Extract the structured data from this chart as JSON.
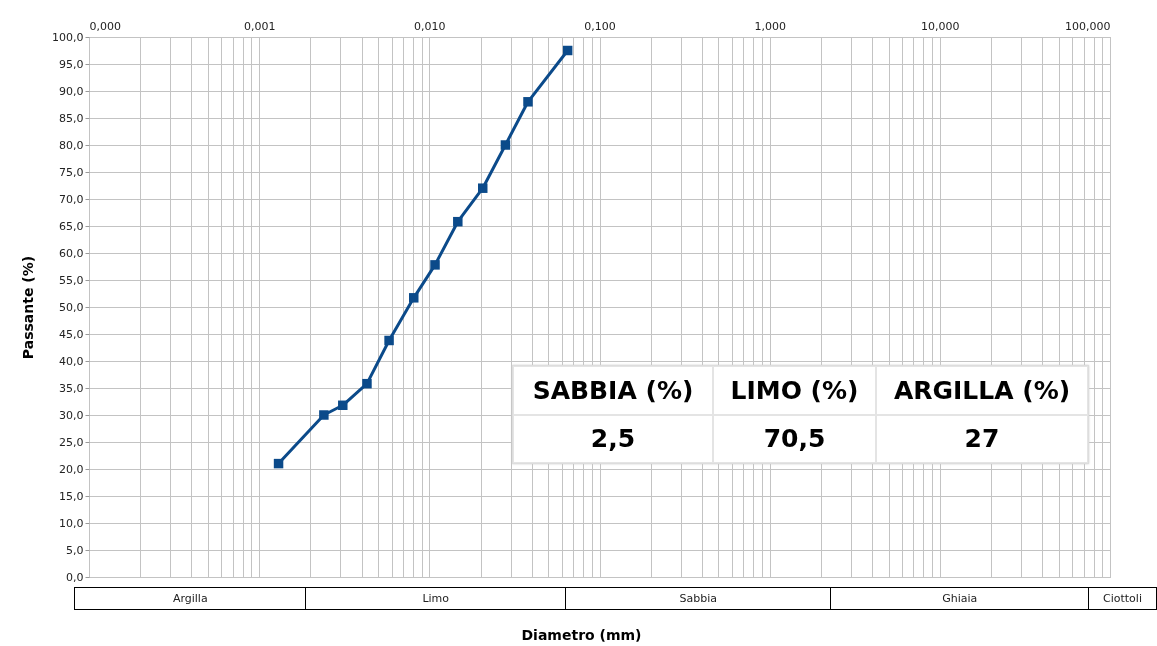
{
  "chart_data": {
    "type": "line",
    "xlabel": "Diametro  (mm)",
    "ylabel": "Passante (%)",
    "x": [
      0.0013,
      0.0024,
      0.0031,
      0.0043,
      0.0058,
      0.0081,
      0.0108,
      0.0147,
      0.0206,
      0.028,
      0.038,
      0.065
    ],
    "series": [
      {
        "color": "#0b4a8a",
        "values": [
          21,
          30,
          31.8,
          35.8,
          43.8,
          51.7,
          57.8,
          65.8,
          72,
          80,
          88,
          97.5
        ]
      }
    ],
    "xlim": [
      0.0001,
      100
    ],
    "xticks": [
      {
        "value": 0.0001,
        "label": "0,000"
      },
      {
        "value": 0.0002,
        "label": null
      },
      {
        "value": 0.0003,
        "label": null
      },
      {
        "value": 0.0004,
        "label": null
      },
      {
        "value": 0.0005,
        "label": null
      },
      {
        "value": 0.0006,
        "label": null
      },
      {
        "value": 0.0007,
        "label": null
      },
      {
        "value": 0.0008,
        "label": null
      },
      {
        "value": 0.0009,
        "label": null
      },
      {
        "value": 0.001,
        "label": "0,001"
      },
      {
        "value": 0.002,
        "label": null
      },
      {
        "value": 0.003,
        "label": null
      },
      {
        "value": 0.004,
        "label": null
      },
      {
        "value": 0.005,
        "label": null
      },
      {
        "value": 0.006,
        "label": null
      },
      {
        "value": 0.007,
        "label": null
      },
      {
        "value": 0.008,
        "label": null
      },
      {
        "value": 0.009,
        "label": null
      },
      {
        "value": 0.01,
        "label": "0,010"
      },
      {
        "value": 0.02,
        "label": null
      },
      {
        "value": 0.03,
        "label": null
      },
      {
        "value": 0.04,
        "label": null
      },
      {
        "value": 0.05,
        "label": null
      },
      {
        "value": 0.06,
        "label": null
      },
      {
        "value": 0.07,
        "label": null
      },
      {
        "value": 0.08,
        "label": null
      },
      {
        "value": 0.09,
        "label": null
      },
      {
        "value": 0.1,
        "label": "0,100"
      },
      {
        "value": 0.2,
        "label": null
      },
      {
        "value": 0.3,
        "label": null
      },
      {
        "value": 0.4,
        "label": null
      },
      {
        "value": 0.5,
        "label": null
      },
      {
        "value": 0.6,
        "label": null
      },
      {
        "value": 0.7,
        "label": null
      },
      {
        "value": 0.8,
        "label": null
      },
      {
        "value": 0.9,
        "label": null
      },
      {
        "value": 1,
        "label": "1,000"
      },
      {
        "value": 2,
        "label": null
      },
      {
        "value": 3,
        "label": null
      },
      {
        "value": 4,
        "label": null
      },
      {
        "value": 5,
        "label": null
      },
      {
        "value": 6,
        "label": null
      },
      {
        "value": 7,
        "label": null
      },
      {
        "value": 8,
        "label": null
      },
      {
        "value": 9,
        "label": null
      },
      {
        "value": 10,
        "label": "10,000"
      },
      {
        "value": 20,
        "label": null
      },
      {
        "value": 30,
        "label": null
      },
      {
        "value": 40,
        "label": null
      },
      {
        "value": 50,
        "label": null
      },
      {
        "value": 60,
        "label": null
      },
      {
        "value": 70,
        "label": null
      },
      {
        "value": 80,
        "label": null
      },
      {
        "value": 90,
        "label": null
      },
      {
        "value": 100,
        "label": "100,000"
      }
    ],
    "ylim": [
      0,
      100
    ],
    "yticks": [
      {
        "value": 0,
        "label": "0,0"
      },
      {
        "value": 5,
        "label": "5,0"
      },
      {
        "value": 10,
        "label": "10,0"
      },
      {
        "value": 15,
        "label": "15,0"
      },
      {
        "value": 20,
        "label": "20,0"
      },
      {
        "value": 25,
        "label": "25,0"
      },
      {
        "value": 30,
        "label": "30,0"
      },
      {
        "value": 35,
        "label": "35,0"
      },
      {
        "value": 40,
        "label": "40,0"
      },
      {
        "value": 45,
        "label": "45,0"
      },
      {
        "value": 50,
        "label": "50,0"
      },
      {
        "value": 55,
        "label": "55,0"
      },
      {
        "value": 60,
        "label": "60,0"
      },
      {
        "value": 65,
        "label": "65,0"
      },
      {
        "value": 70,
        "label": "70,0"
      },
      {
        "value": 75,
        "label": "75,0"
      },
      {
        "value": 80,
        "label": "80,0"
      },
      {
        "value": 85,
        "label": "85,0"
      },
      {
        "value": 90,
        "label": "90,0"
      },
      {
        "value": 95,
        "label": "95,0"
      },
      {
        "value": 100,
        "label": "100,0"
      }
    ],
    "annotations": [
      "SABBIA (%)",
      "LIMO (%)",
      "ARGILLA (%)",
      "2,5",
      "70,5",
      "27",
      "Argilla",
      "Limo",
      "Sabbia",
      "Ghiaia",
      "Ciottoli"
    ],
    "grid": true,
    "marker": "square",
    "line_style": "solid",
    "log": "x"
  }
}
